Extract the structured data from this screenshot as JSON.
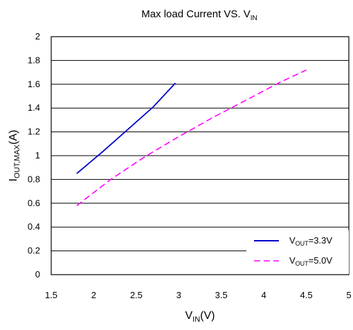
{
  "chart_data": {
    "type": "line",
    "title": {
      "main": "Max load Current VS. V",
      "sub": "IN"
    },
    "xlabel": {
      "main": "V",
      "sub": "IN",
      "suffix": "(V)"
    },
    "ylabel": {
      "main": "I",
      "sub": "OUT,MAX",
      "suffix": "(A)"
    },
    "xlim": [
      1.5,
      5
    ],
    "ylim": [
      0,
      2
    ],
    "xticks": [
      "1.5",
      "2",
      "2.5",
      "3",
      "3.5",
      "4",
      "4.5",
      "5"
    ],
    "yticks": [
      "0",
      "0.2",
      "0.4",
      "0.6",
      "0.8",
      "1",
      "1.2",
      "1.4",
      "1.6",
      "1.8",
      "2"
    ],
    "grid": "horizontal",
    "legend_position": "bottom-right",
    "series": [
      {
        "name": {
          "main": "V",
          "sub": "OUT",
          "suffix": "=3.3V"
        },
        "color": "#0000cc",
        "dash": "solid",
        "x": [
          1.8,
          2.1,
          2.4,
          2.7,
          2.96
        ],
        "y": [
          0.85,
          1.03,
          1.22,
          1.41,
          1.61
        ]
      },
      {
        "name": {
          "main": "V",
          "sub": "OUT",
          "suffix": "=5.0V"
        },
        "color": "#ff00ff",
        "dash": "dashed",
        "x": [
          1.8,
          2.2,
          2.6,
          3.0,
          3.4,
          3.8,
          4.2,
          4.5
        ],
        "y": [
          0.58,
          0.8,
          0.99,
          1.16,
          1.32,
          1.47,
          1.62,
          1.72
        ]
      }
    ]
  }
}
